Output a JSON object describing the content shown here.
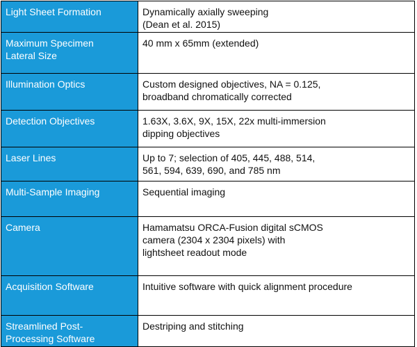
{
  "spec_table": {
    "rows": [
      {
        "label": "Light Sheet Formation",
        "value": "Dynamically axially sweeping\n(Dean et al. 2015)"
      },
      {
        "label": "Maximum Specimen\nLateral Size",
        "value": "40 mm x 65mm (extended)"
      },
      {
        "label": "Illumination Optics",
        "value": "Custom designed objectives, NA = 0.125,\nbroadband chromatically corrected"
      },
      {
        "label": "Detection Objectives",
        "value": "1.63X, 3.6X, 9X, 15X, 22x multi-immersion\ndipping objectives"
      },
      {
        "label": "Laser Lines",
        "value": "Up to 7; selection of 405, 445, 488, 514,\n561, 594, 639, 690, and 785 nm"
      },
      {
        "label": "Multi-Sample Imaging",
        "value": "Sequential imaging"
      },
      {
        "label": "Camera",
        "value": "Hamamatsu ORCA-Fusion digital sCMOS\ncamera (2304 x 2304 pixels) with\nlightsheet readout mode"
      },
      {
        "label": "Acquisition Software",
        "value": "Intuitive software with quick alignment procedure"
      },
      {
        "label": "Streamlined Post-\nProcessing Software",
        "value": "Destriping and stitching"
      }
    ]
  }
}
